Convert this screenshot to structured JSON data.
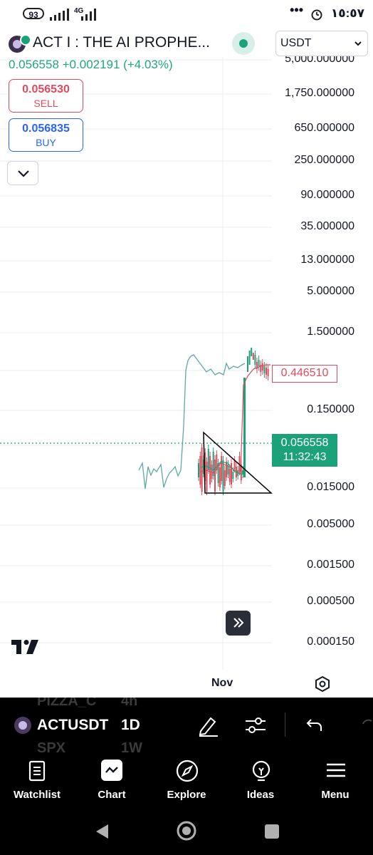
{
  "status_bar": {
    "battery": "93",
    "network": "4G",
    "time": "١٥:٥٧",
    "more": "•••"
  },
  "header": {
    "symbol_title": "ACT I : THE AI PROPHE...",
    "currency": "USDT",
    "price_line": "0.056558  +0.002191 (+4.03%)"
  },
  "trade": {
    "sell_price": "0.056530",
    "sell_label": "SELL",
    "buy_price": "0.056835",
    "buy_label": "BUY"
  },
  "chart_data": {
    "type": "line",
    "symbol": "ACTUSDT",
    "interval": "1D",
    "scale": "log",
    "y_tick_labels": [
      "5,000.000000",
      "1,750.000000",
      "650.000000",
      "250.000000",
      "90.000000",
      "35.000000",
      "13.000000",
      "5.000000",
      "1.500000",
      "0.150000",
      "0.015000",
      "0.005000",
      "0.001500",
      "0.000500",
      "0.000150"
    ],
    "x_tick_labels": [
      "Nov"
    ],
    "last_price": "0.056558",
    "countdown": "11:32:43",
    "compare_price": "0.446510",
    "colors": {
      "compare_line": "#5fa8a4",
      "up": "#1ba27a",
      "down": "#e04b5c",
      "grid": "#e9ecf1"
    }
  },
  "toolbar": {
    "symbol": "ACTUSDT",
    "interval": "1D",
    "ghost_top_symbol": "PIZZA_C",
    "ghost_top_interval": "4h",
    "ghost_bottom_symbol": "SPX",
    "ghost_bottom_interval": "1W"
  },
  "nav": [
    {
      "label": "Watchlist",
      "icon": "watchlist-icon"
    },
    {
      "label": "Chart",
      "icon": "chart-icon"
    },
    {
      "label": "Explore",
      "icon": "compass-icon"
    },
    {
      "label": "Ideas",
      "icon": "lightbulb-icon"
    },
    {
      "label": "Menu",
      "icon": "menu-icon"
    }
  ]
}
